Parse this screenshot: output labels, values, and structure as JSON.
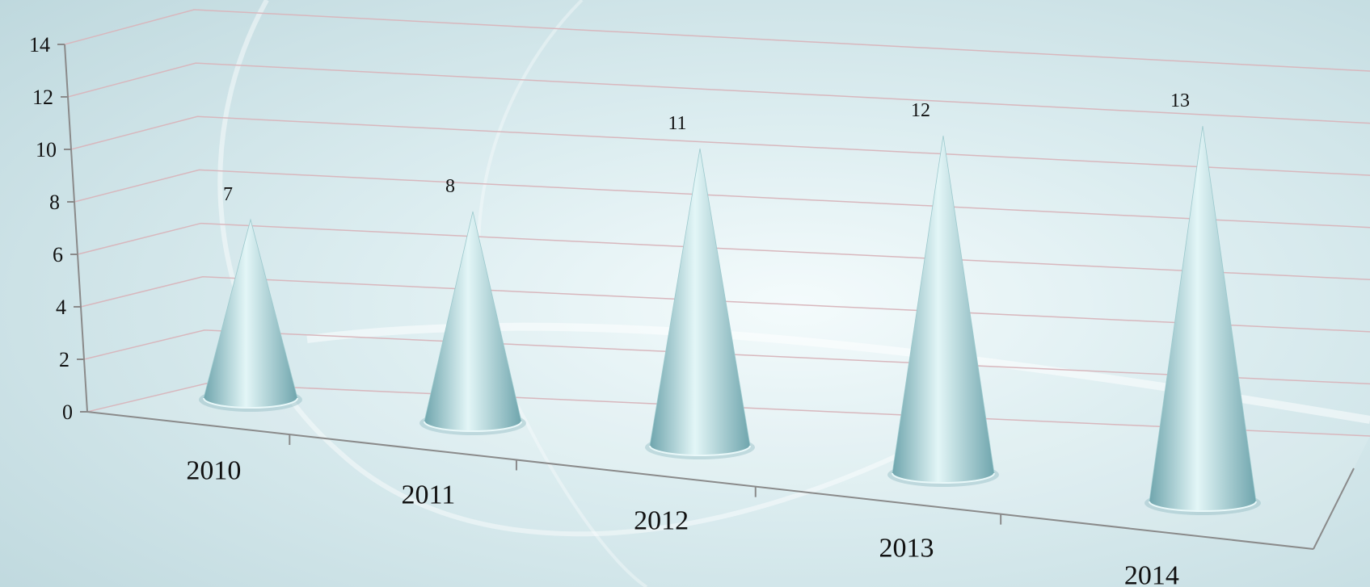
{
  "chart_data": {
    "type": "bar",
    "bar_shape": "cone",
    "view": "3d",
    "categories": [
      "2010",
      "2011",
      "2012",
      "2013",
      "2014"
    ],
    "series": [
      {
        "values": [
          7,
          8,
          11,
          12,
          13
        ]
      }
    ],
    "data_labels": [
      "7",
      "8",
      "11",
      "12",
      "13"
    ],
    "y_ticks": [
      "0",
      "2",
      "4",
      "6",
      "8",
      "10",
      "12",
      "14"
    ],
    "ylim": [
      0,
      14
    ],
    "grid": true,
    "legend": "none",
    "title": "",
    "xlabel": "",
    "ylabel": "",
    "colors": {
      "cone": "#a9d8dc",
      "cone_highlight": "#e3f6f7",
      "cone_shadow": "#6fa5ad",
      "gridline": "#d8b7bd",
      "axis": "#8a8a8a",
      "background": "#c9e1e6"
    }
  }
}
